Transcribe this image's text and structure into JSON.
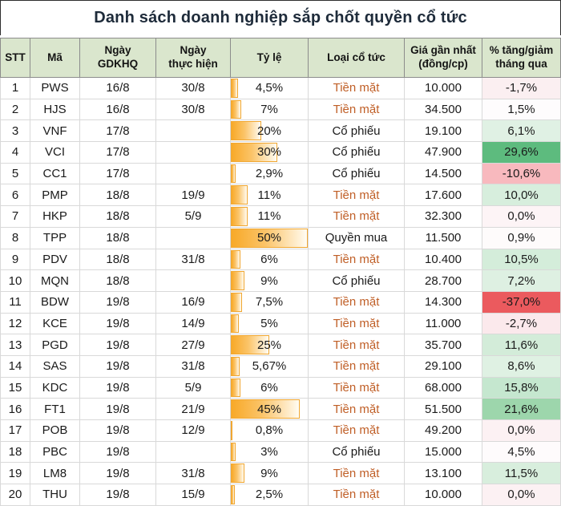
{
  "colors": {
    "header_bg": "#dae6cd",
    "header_border": "#8c8c8c",
    "grid_border": "#d9d9d9",
    "title_text": "#1e2b3a",
    "body_text": "#1a1a1a",
    "cash_type_text": "#c05f27",
    "other_type_text": "#1a1a1a",
    "bar_fill_start": "#f8a928",
    "bar_fill_end": "#fffdf6",
    "bar_border": "#f0a732",
    "strong_red": "#eb5a5e",
    "strong_green": "#5dbb7e"
  },
  "chart_data": {
    "type": "table",
    "title": "Danh sách doanh nghiệp sắp chốt quyền cổ tức",
    "columns": [
      "STT",
      "Mã",
      "Ngày\nGDKHQ",
      "Ngày\nthực hiện",
      "Tỷ lệ",
      "Loại cổ tức",
      "Giá gần nhất\n(đồng/cp)",
      "% tăng/giảm\ntháng qua"
    ],
    "bar_column": {
      "applies_to": "Tỷ lệ",
      "max_percent": 50,
      "style": "orange-gradient-databar"
    },
    "change_column_note": "red-white-green conditional background scale",
    "rows": [
      {
        "stt": "1",
        "code": "PWS",
        "ngay_gdkhq": "16/8",
        "ngay_thuc_hien": "30/8",
        "ty_le": "4,5%",
        "ty_le_value": 4.5,
        "loai_co_tuc": "Tiền mặt",
        "type_color": "#c05f27",
        "gia_gan_nhat": "10.000",
        "pct_thang_qua": "-1,7%",
        "pct_bg": "#fbeff1"
      },
      {
        "stt": "2",
        "code": "HJS",
        "ngay_gdkhq": "16/8",
        "ngay_thuc_hien": "30/8",
        "ty_le": "7%",
        "ty_le_value": 7,
        "loai_co_tuc": "Tiền mặt",
        "type_color": "#c05f27",
        "gia_gan_nhat": "34.500",
        "pct_thang_qua": "1,5%",
        "pct_bg": "#fefcfd"
      },
      {
        "stt": "3",
        "code": "VNF",
        "ngay_gdkhq": "17/8",
        "ngay_thuc_hien": "",
        "ty_le": "20%",
        "ty_le_value": 20,
        "loai_co_tuc": "Cổ phiếu",
        "type_color": "#1a1a1a",
        "gia_gan_nhat": "19.100",
        "pct_thang_qua": "6,1%",
        "pct_bg": "#e0f1e4"
      },
      {
        "stt": "4",
        "code": "VCI",
        "ngay_gdkhq": "17/8",
        "ngay_thuc_hien": "",
        "ty_le": "30%",
        "ty_le_value": 30,
        "loai_co_tuc": "Cổ phiếu",
        "type_color": "#1a1a1a",
        "gia_gan_nhat": "47.900",
        "pct_thang_qua": "29,6%",
        "pct_bg": "#5dbb7e"
      },
      {
        "stt": "5",
        "code": "CC1",
        "ngay_gdkhq": "17/8",
        "ngay_thuc_hien": "",
        "ty_le": "2,9%",
        "ty_le_value": 2.9,
        "loai_co_tuc": "Cổ phiếu",
        "type_color": "#1a1a1a",
        "gia_gan_nhat": "14.500",
        "pct_thang_qua": "-10,6%",
        "pct_bg": "#f8b9be"
      },
      {
        "stt": "6",
        "code": "PMP",
        "ngay_gdkhq": "18/8",
        "ngay_thuc_hien": "19/9",
        "ty_le": "11%",
        "ty_le_value": 11,
        "loai_co_tuc": "Tiền mặt",
        "type_color": "#c05f27",
        "gia_gan_nhat": "17.600",
        "pct_thang_qua": "10,0%",
        "pct_bg": "#d7eedd"
      },
      {
        "stt": "7",
        "code": "HKP",
        "ngay_gdkhq": "18/8",
        "ngay_thuc_hien": "5/9",
        "ty_le": "11%",
        "ty_le_value": 11,
        "loai_co_tuc": "Tiền mặt",
        "type_color": "#c05f27",
        "gia_gan_nhat": "32.300",
        "pct_thang_qua": "0,0%",
        "pct_bg": "#fdf4f6"
      },
      {
        "stt": "8",
        "code": "TPP",
        "ngay_gdkhq": "18/8",
        "ngay_thuc_hien": "",
        "ty_le": "50%",
        "ty_le_value": 50,
        "loai_co_tuc": "Quyền mua",
        "type_color": "#1a1a1a",
        "gia_gan_nhat": "11.500",
        "pct_thang_qua": "0,9%",
        "pct_bg": "#fefbfb"
      },
      {
        "stt": "9",
        "code": "PDV",
        "ngay_gdkhq": "18/8",
        "ngay_thuc_hien": "31/8",
        "ty_le": "6%",
        "ty_le_value": 6,
        "loai_co_tuc": "Tiền mặt",
        "type_color": "#c05f27",
        "gia_gan_nhat": "10.400",
        "pct_thang_qua": "10,5%",
        "pct_bg": "#d4edda"
      },
      {
        "stt": "10",
        "code": "MQN",
        "ngay_gdkhq": "18/8",
        "ngay_thuc_hien": "",
        "ty_le": "9%",
        "ty_le_value": 9,
        "loai_co_tuc": "Cổ phiếu",
        "type_color": "#1a1a1a",
        "gia_gan_nhat": "28.700",
        "pct_thang_qua": "7,2%",
        "pct_bg": "#def0e2"
      },
      {
        "stt": "11",
        "code": "BDW",
        "ngay_gdkhq": "19/8",
        "ngay_thuc_hien": "16/9",
        "ty_le": "7,5%",
        "ty_le_value": 7.5,
        "loai_co_tuc": "Tiền mặt",
        "type_color": "#c05f27",
        "gia_gan_nhat": "14.300",
        "pct_thang_qua": "-37,0%",
        "pct_bg": "#eb5a5e"
      },
      {
        "stt": "12",
        "code": "KCE",
        "ngay_gdkhq": "19/8",
        "ngay_thuc_hien": "14/9",
        "ty_le": "5%",
        "ty_le_value": 5,
        "loai_co_tuc": "Tiền mặt",
        "type_color": "#c05f27",
        "gia_gan_nhat": "11.000",
        "pct_thang_qua": "-2,7%",
        "pct_bg": "#fbe9ec"
      },
      {
        "stt": "13",
        "code": "PGD",
        "ngay_gdkhq": "19/8",
        "ngay_thuc_hien": "27/9",
        "ty_le": "25%",
        "ty_le_value": 25,
        "loai_co_tuc": "Tiền mặt",
        "type_color": "#c05f27",
        "gia_gan_nhat": "35.700",
        "pct_thang_qua": "11,6%",
        "pct_bg": "#d3ecd9"
      },
      {
        "stt": "14",
        "code": "SAS",
        "ngay_gdkhq": "19/8",
        "ngay_thuc_hien": "31/8",
        "ty_le": "5,67%",
        "ty_le_value": 5.67,
        "loai_co_tuc": "Tiền mặt",
        "type_color": "#c05f27",
        "gia_gan_nhat": "29.100",
        "pct_thang_qua": "8,6%",
        "pct_bg": "#dff1e3"
      },
      {
        "stt": "15",
        "code": "KDC",
        "ngay_gdkhq": "19/8",
        "ngay_thuc_hien": "5/9",
        "ty_le": "6%",
        "ty_le_value": 6,
        "loai_co_tuc": "Tiền mặt",
        "type_color": "#c05f27",
        "gia_gan_nhat": "68.000",
        "pct_thang_qua": "15,8%",
        "pct_bg": "#c5e7cf"
      },
      {
        "stt": "16",
        "code": "FT1",
        "ngay_gdkhq": "19/8",
        "ngay_thuc_hien": "21/9",
        "ty_le": "45%",
        "ty_le_value": 45,
        "loai_co_tuc": "Tiền mặt",
        "type_color": "#c05f27",
        "gia_gan_nhat": "51.500",
        "pct_thang_qua": "21,6%",
        "pct_bg": "#9dd6ac"
      },
      {
        "stt": "17",
        "code": "POB",
        "ngay_gdkhq": "19/8",
        "ngay_thuc_hien": "12/9",
        "ty_le": "0,8%",
        "ty_le_value": 0.8,
        "loai_co_tuc": "Tiền mặt",
        "type_color": "#c05f27",
        "gia_gan_nhat": "49.200",
        "pct_thang_qua": "0,0%",
        "pct_bg": "#fcf1f3"
      },
      {
        "stt": "18",
        "code": "PBC",
        "ngay_gdkhq": "19/8",
        "ngay_thuc_hien": "",
        "ty_le": "3%",
        "ty_le_value": 3,
        "loai_co_tuc": "Cổ phiếu",
        "type_color": "#1a1a1a",
        "gia_gan_nhat": "15.000",
        "pct_thang_qua": "4,5%",
        "pct_bg": "#fefbfc"
      },
      {
        "stt": "19",
        "code": "LM8",
        "ngay_gdkhq": "19/8",
        "ngay_thuc_hien": "31/8",
        "ty_le": "9%",
        "ty_le_value": 9,
        "loai_co_tuc": "Tiền mặt",
        "type_color": "#c05f27",
        "gia_gan_nhat": "13.100",
        "pct_thang_qua": "11,5%",
        "pct_bg": "#d8eedd"
      },
      {
        "stt": "20",
        "code": "THU",
        "ngay_gdkhq": "19/8",
        "ngay_thuc_hien": "15/9",
        "ty_le": "2,5%",
        "ty_le_value": 2.5,
        "loai_co_tuc": "Tiền mặt",
        "type_color": "#c05f27",
        "gia_gan_nhat": "10.000",
        "pct_thang_qua": "0,0%",
        "pct_bg": "#fcf1f3"
      }
    ]
  }
}
